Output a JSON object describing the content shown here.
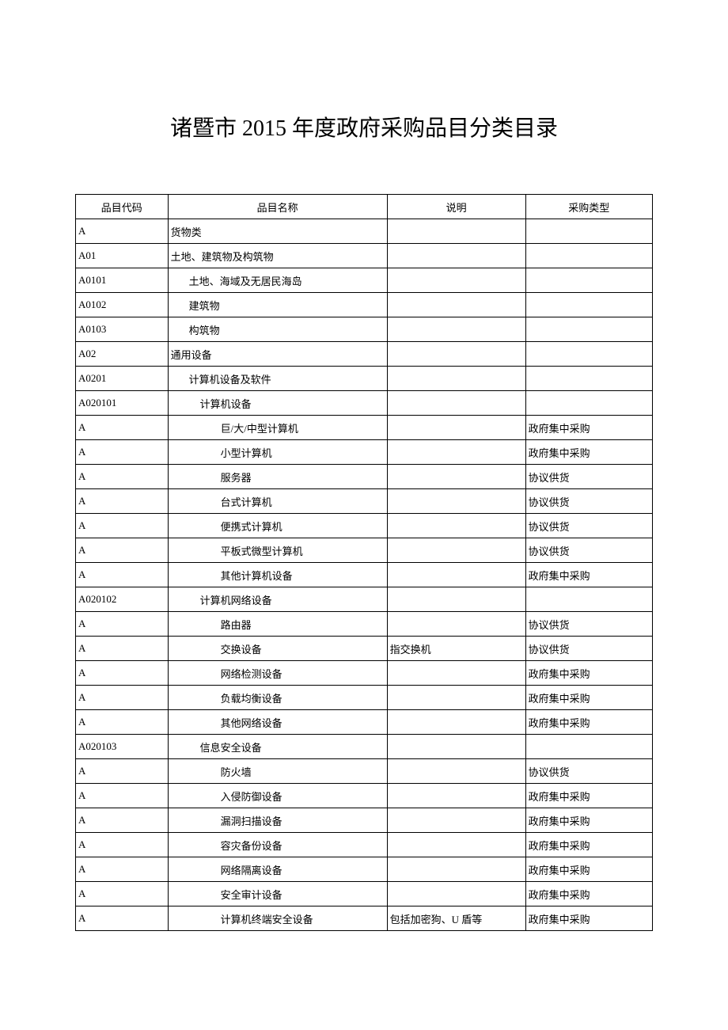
{
  "title": "诸暨市 2015 年度政府采购品目分类目录",
  "header": {
    "code": "品目代码",
    "name": "品目名称",
    "desc": "说明",
    "type": "采购类型"
  },
  "rows": [
    {
      "code": "A",
      "code_align": "center",
      "name": "货物类",
      "indent": 0,
      "desc": "",
      "type": ""
    },
    {
      "code": "A01",
      "code_align": "left",
      "name": "土地、建筑物及构筑物",
      "indent": 0,
      "desc": "",
      "type": ""
    },
    {
      "code": "A0101",
      "code_align": "left",
      "name": "土地、海域及无居民海岛",
      "indent": 1,
      "desc": "",
      "type": ""
    },
    {
      "code": "A0102",
      "code_align": "left",
      "name": "建筑物",
      "indent": 1,
      "desc": "",
      "type": ""
    },
    {
      "code": "A0103",
      "code_align": "left",
      "name": "构筑物",
      "indent": 1,
      "desc": "",
      "type": ""
    },
    {
      "code": "A02",
      "code_align": "left",
      "name": "通用设备",
      "indent": 0,
      "desc": "",
      "type": ""
    },
    {
      "code": "A0201",
      "code_align": "left",
      "name": "计算机设备及软件",
      "indent": 1,
      "desc": "",
      "type": ""
    },
    {
      "code": "A020101",
      "code_align": "left",
      "name": "计算机设备",
      "indent": 2,
      "desc": "",
      "type": ""
    },
    {
      "code": "A",
      "code_align": "left",
      "name": "巨/大/中型计算机",
      "indent": 3,
      "desc": "",
      "type": "政府集中采购"
    },
    {
      "code": "A",
      "code_align": "left",
      "name": "小型计算机",
      "indent": 3,
      "desc": "",
      "type": "政府集中采购"
    },
    {
      "code": "A",
      "code_align": "left",
      "name": "服务器",
      "indent": 3,
      "desc": "",
      "type": "协议供货"
    },
    {
      "code": "A",
      "code_align": "left",
      "name": "台式计算机",
      "indent": 3,
      "desc": "",
      "type": "协议供货"
    },
    {
      "code": "A",
      "code_align": "left",
      "name": "便携式计算机",
      "indent": 3,
      "desc": "",
      "type": "协议供货"
    },
    {
      "code": "A",
      "code_align": "left",
      "name": "平板式微型计算机",
      "indent": 3,
      "desc": "",
      "type": "协议供货"
    },
    {
      "code": "A",
      "code_align": "left",
      "name": "其他计算机设备",
      "indent": 3,
      "desc": "",
      "type": "政府集中采购"
    },
    {
      "code": "A020102",
      "code_align": "left",
      "name": "计算机网络设备",
      "indent": 2,
      "desc": "",
      "type": ""
    },
    {
      "code": "A",
      "code_align": "left",
      "name": "路由器",
      "indent": 3,
      "desc": "",
      "type": "协议供货"
    },
    {
      "code": "A",
      "code_align": "left",
      "name": "交换设备",
      "indent": 3,
      "desc": "指交换机",
      "type": "协议供货"
    },
    {
      "code": "A",
      "code_align": "left",
      "name": "网络检测设备",
      "indent": 3,
      "desc": "",
      "type": "政府集中采购"
    },
    {
      "code": "A",
      "code_align": "left",
      "name": "负载均衡设备",
      "indent": 3,
      "desc": "",
      "type": "政府集中采购"
    },
    {
      "code": "A",
      "code_align": "left",
      "name": "其他网络设备",
      "indent": 3,
      "desc": "",
      "type": "政府集中采购"
    },
    {
      "code": "A020103",
      "code_align": "left",
      "name": "信息安全设备",
      "indent": 2,
      "desc": "",
      "type": ""
    },
    {
      "code": "A",
      "code_align": "left",
      "name": "防火墙",
      "indent": 3,
      "desc": "",
      "type": "协议供货"
    },
    {
      "code": "A",
      "code_align": "left",
      "name": "入侵防御设备",
      "indent": 3,
      "desc": "",
      "type": "政府集中采购"
    },
    {
      "code": "A",
      "code_align": "left",
      "name": "漏洞扫描设备",
      "indent": 3,
      "desc": "",
      "type": "政府集中采购"
    },
    {
      "code": "A",
      "code_align": "left",
      "name": "容灾备份设备",
      "indent": 3,
      "desc": "",
      "type": "政府集中采购"
    },
    {
      "code": "A",
      "code_align": "left",
      "name": "网络隔离设备",
      "indent": 3,
      "desc": "",
      "type": "政府集中采购"
    },
    {
      "code": "A",
      "code_align": "left",
      "name": "安全审计设备",
      "indent": 3,
      "desc": "",
      "type": "政府集中采购"
    },
    {
      "code": "A",
      "code_align": "left",
      "name": "计算机终端安全设备",
      "indent": 3,
      "desc": "包括加密狗、U 盾等",
      "type": "政府集中采购"
    }
  ]
}
